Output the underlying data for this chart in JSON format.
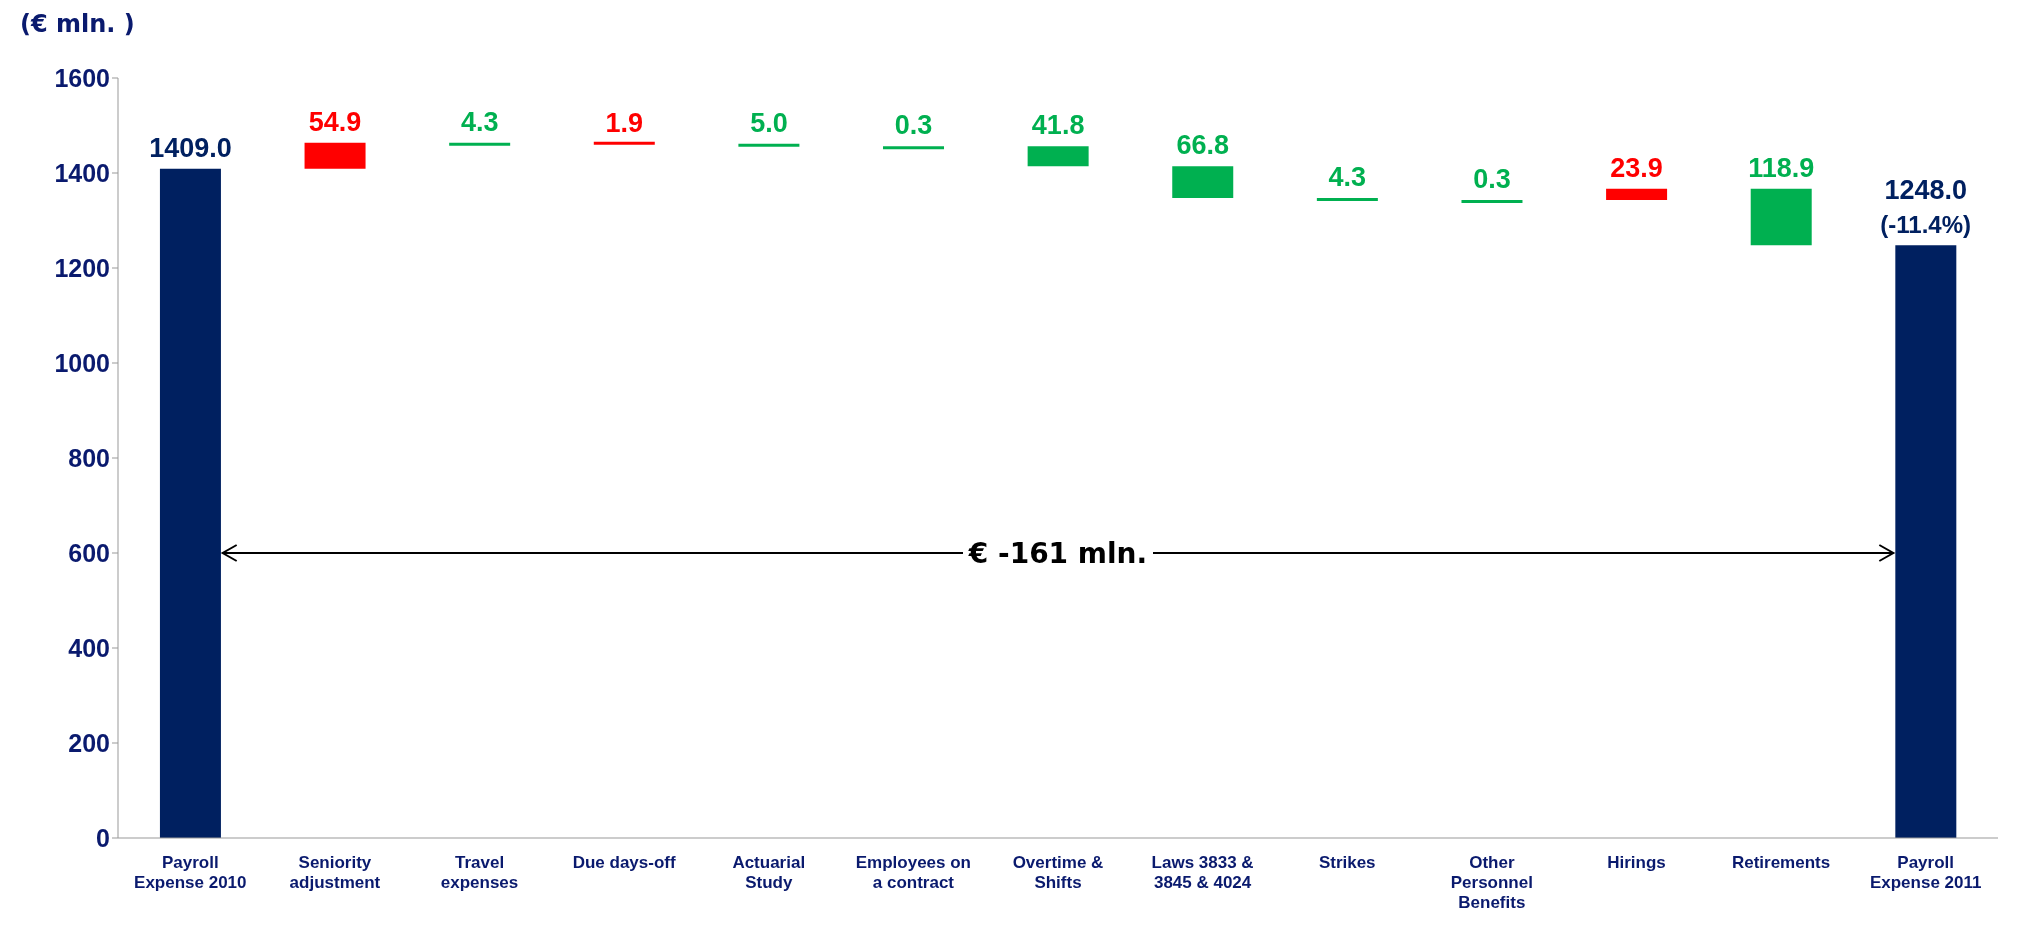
{
  "chart_data": {
    "type": "bar",
    "ylabel": "(€ mln. )",
    "categories": [
      "Payroll Expense 2010",
      "Seniority adjustment",
      "Travel expenses",
      "Due days-off",
      "Actuarial Study",
      "Employees on a contract",
      "Overtime & Shifts",
      "Laws 3833 & 3845 & 4024",
      "Strikes",
      "Other Personnel Benefits",
      "Hirings",
      "Retirements",
      "Payroll Expense 2011"
    ],
    "values": [
      1409.0,
      54.9,
      -4.3,
      1.9,
      -5.0,
      -0.3,
      -41.8,
      -66.8,
      -4.3,
      -0.3,
      23.9,
      -118.9,
      1248.0
    ],
    "base": [
      0,
      1409.0,
      1463.9,
      1459.6,
      1461.5,
      1456.5,
      1456.2,
      1414.4,
      1347.6,
      1343.3,
      1343.0,
      1366.9,
      0
    ],
    "colors": [
      "#002060",
      "#ff0000",
      "#00b050",
      "#ff0000",
      "#00b050",
      "#00b050",
      "#00b050",
      "#00b050",
      "#00b050",
      "#00b050",
      "#ff0000",
      "#00b050",
      "#002060"
    ],
    "value_labels": [
      "1409.0",
      "54.9",
      "4.3",
      "1.9",
      "5.0",
      "0.3",
      "41.8",
      "66.8",
      "4.3",
      "0.3",
      "23.9",
      "118.9",
      "1248.0"
    ],
    "ylim": [
      0,
      1600
    ],
    "yticks": [
      0,
      200,
      400,
      600,
      800,
      1000,
      1200,
      1400,
      1600
    ],
    "legend": false,
    "annotations": [
      {
        "text": "(-11.4%)",
        "x": "Payroll Expense 2011",
        "y": 1248.0
      },
      "€ -161 mln."
    ]
  }
}
